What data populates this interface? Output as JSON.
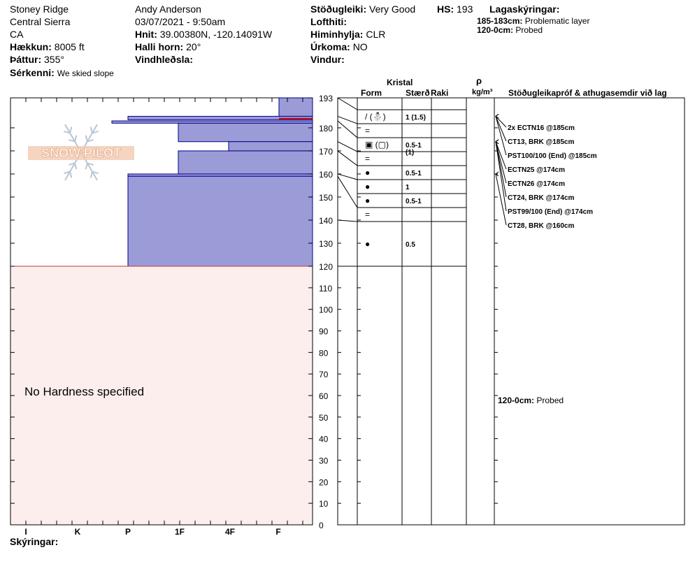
{
  "header": {
    "location": "Stoney Ridge",
    "range": "Central Sierra",
    "state": "CA",
    "elevation_label": "Hækkun:",
    "elevation_value": "8005 ft",
    "aspect_label": "Þáttur:",
    "aspect_value": "355°",
    "specifics_label": "Sérkenni:",
    "specifics_value": "We skied slope",
    "observer": "Andy Anderson",
    "datetime": "03/07/2021 - 9:50am",
    "coords_label": "Hnit:",
    "coords_value": "39.00380N, -120.14091W",
    "slope_label": "Halli horn:",
    "slope_value": "20°",
    "wind_loading_label": "Vindhleðsla:",
    "wind_loading_value": "",
    "stability_label": "Stöðugleiki:",
    "stability_value": "Very Good",
    "hs_label": "HS:",
    "hs_value": "193",
    "air_temp_label": "Lofthiti:",
    "air_temp_value": "",
    "sky_label": "Himinhylja:",
    "sky_value": "CLR",
    "precip_label": "Úrkoma:",
    "precip_value": "NO",
    "wind_label": "Vindur:",
    "wind_value": "",
    "legend_title": "Lagaskýringar:",
    "legend_items": [
      {
        "range": "185-183cm:",
        "text": "Problematic layer"
      },
      {
        "range": "120-0cm:",
        "text": "Probed"
      }
    ]
  },
  "logo_text": "SNOW PILOT",
  "columns": {
    "kristal": "Kristal",
    "form": "Form",
    "size": "Stærð",
    "moisture": "Raki",
    "rho": "ρ",
    "density_unit": "kg/m³",
    "stability_tests": "Stöðugleikapróf & athugasemdir við lag"
  },
  "footer": {
    "comments_label": "Skýringar:",
    "no_hardness": "No Hardness specified",
    "probed_note_range": "120-0cm:",
    "probed_note_text": "Probed"
  },
  "colors": {
    "layer_fill": "#9b9bd7",
    "layer_stroke": "#00008b",
    "problem_line": "#cc0000",
    "probed_fill": "#fdeeee"
  },
  "chart_data": {
    "type": "snow_profile",
    "y_axis": {
      "min": 0,
      "max": 193,
      "ticks": [
        193,
        180,
        170,
        160,
        150,
        140,
        130,
        120,
        110,
        100,
        90,
        80,
        70,
        60,
        50,
        40,
        30,
        20,
        10,
        0
      ]
    },
    "hardness_scale": [
      "I",
      "K",
      "P",
      "1F",
      "4F",
      "F"
    ],
    "hardness_layers": [
      {
        "top": 193,
        "bottom": 185,
        "hardness_index": 0.18
      },
      {
        "top": 185,
        "bottom": 183.5,
        "hardness_index": 3.6
      },
      {
        "top": 183,
        "bottom": 182,
        "hardness_index": 4.2
      },
      {
        "top": 182,
        "bottom": 174,
        "hardness_index": 2.7
      },
      {
        "top": 174,
        "bottom": 170,
        "hardness_index": 1.8
      },
      {
        "top": 170,
        "bottom": 160,
        "hardness_index": 2.7
      },
      {
        "top": 160,
        "bottom": 159,
        "hardness_index": 3.6
      },
      {
        "top": 159,
        "bottom": 120,
        "hardness_index": 3.6
      }
    ],
    "problem_layer": {
      "top": 185,
      "bottom": 183
    },
    "probed_range": {
      "top": 120,
      "bottom": 0
    },
    "crystal_rows": [
      {
        "top": 193,
        "bottom": 187,
        "form": "/ (⛄)",
        "size": "1 (1.5)"
      },
      {
        "top": 187,
        "bottom": 180,
        "form": "=",
        "size": ""
      },
      {
        "top": 180,
        "bottom": 174,
        "form": "▣ (▢)",
        "size": "0.5-1",
        "size2": "(1)"
      },
      {
        "top": 174,
        "bottom": 167,
        "form": "=",
        "size": ""
      },
      {
        "top": 167,
        "bottom": 161,
        "form": "●",
        "size": "0.5-1"
      },
      {
        "top": 161,
        "bottom": 154,
        "form": "●",
        "size": "1"
      },
      {
        "top": 154,
        "bottom": 148,
        "form": "●",
        "size": "0.5-1"
      },
      {
        "top": 148,
        "bottom": 141,
        "form": "=",
        "size": ""
      },
      {
        "top": 141,
        "bottom": 120,
        "form": "●",
        "size": "0.5"
      }
    ],
    "stability_tests": [
      {
        "text": "2x ECTN16 @185cm",
        "depth": 185
      },
      {
        "text": "CT13, BRK @185cm",
        "depth": 185
      },
      {
        "text": "PST100/100 (End) @185cm",
        "depth": 185
      },
      {
        "text": "ECTN25 @174cm",
        "depth": 174
      },
      {
        "text": "ECTN26 @174cm",
        "depth": 174
      },
      {
        "text": "CT24, BRK @174cm",
        "depth": 174
      },
      {
        "text": "PST99/100 (End) @174cm",
        "depth": 174
      },
      {
        "text": "CT28, BRK @160cm",
        "depth": 160
      }
    ]
  }
}
